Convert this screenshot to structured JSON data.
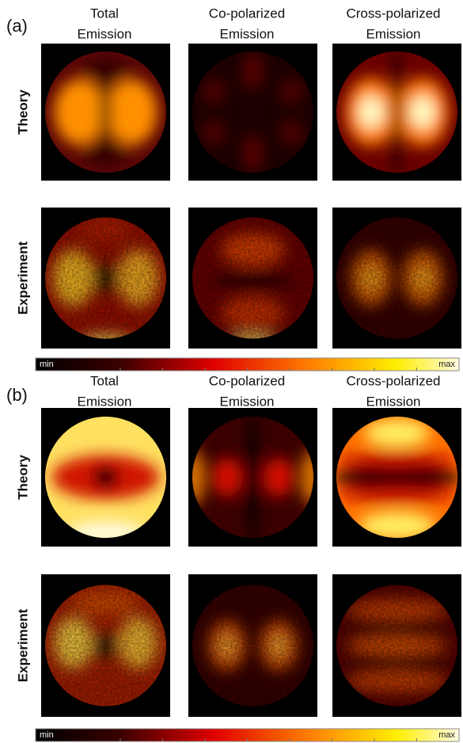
{
  "panels": [
    {
      "label": "(a)",
      "columns": [
        [
          "Total",
          "Emission"
        ],
        [
          "Co-polarized",
          "Emission"
        ],
        [
          "Cross-polarized",
          "Emission"
        ]
      ],
      "rows": [
        "Theory",
        "Experiment"
      ],
      "colorbar": {
        "min": "min",
        "max": "max"
      }
    },
    {
      "label": "(b)",
      "columns": [
        [
          "Total",
          "Emission"
        ],
        [
          "Co-polarized",
          "Emission"
        ],
        [
          "Cross-polarized",
          "Emission"
        ]
      ],
      "rows": [
        "Theory",
        "Experiment"
      ],
      "colorbar": {
        "min": "min",
        "max": "max"
      }
    }
  ]
}
